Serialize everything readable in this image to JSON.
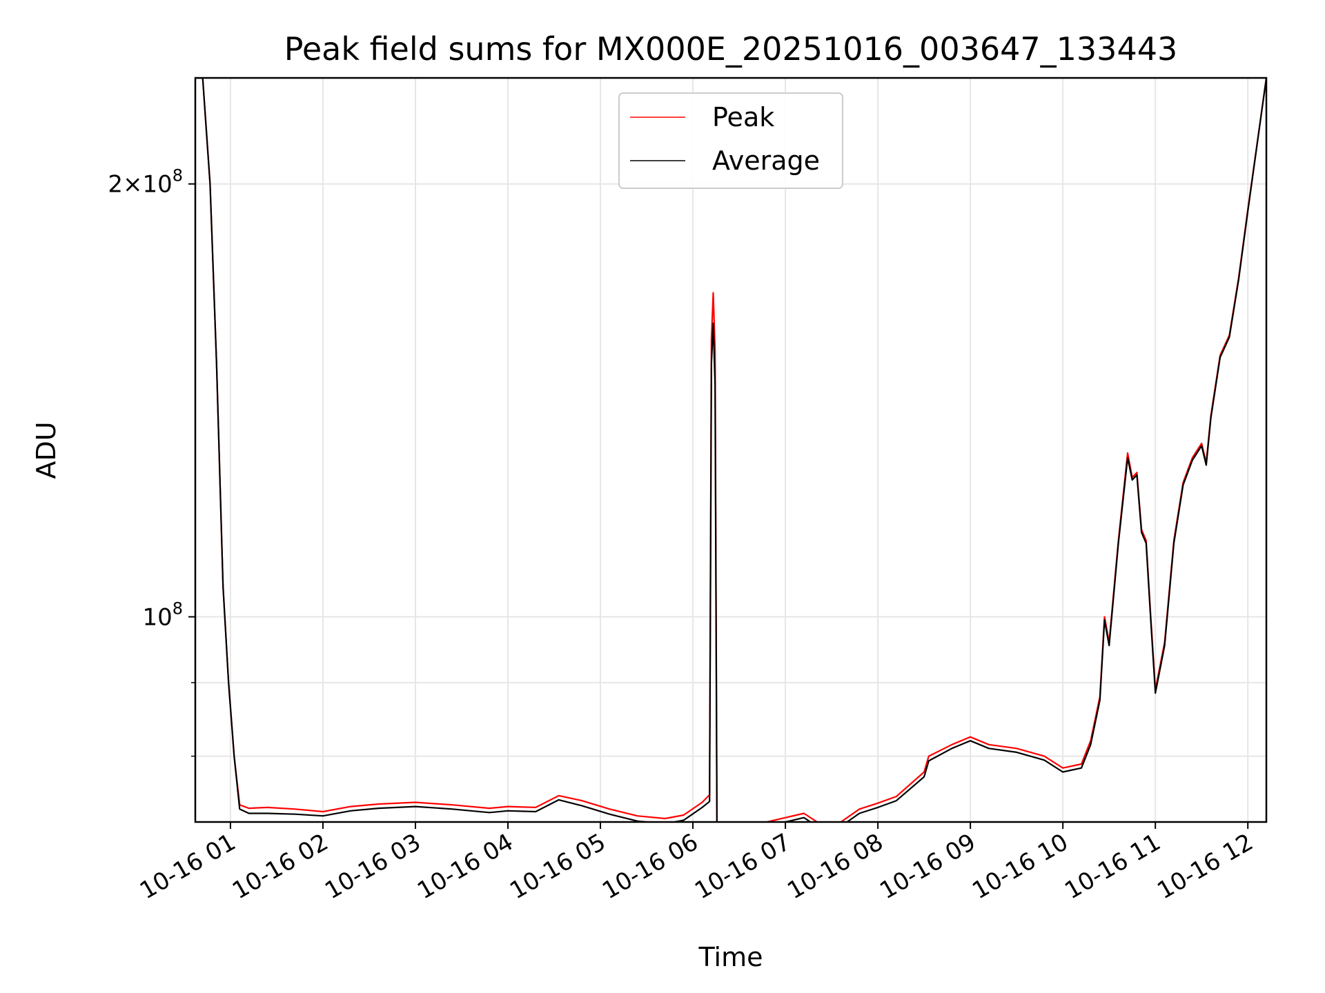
{
  "chart_data": {
    "type": "line",
    "title": "Peak field sums for MX000E_20251016_003647_133443",
    "xlabel": "Time",
    "ylabel": "ADU",
    "yscale": "log",
    "xlim_hours": [
      0.62,
      12.2
    ],
    "ylim": [
      72000000,
      237000000
    ],
    "grid": true,
    "legend_position": "top-center",
    "x_tick_labels": [
      "10-16 01",
      "10-16 02",
      "10-16 03",
      "10-16 04",
      "10-16 05",
      "10-16 06",
      "10-16 07",
      "10-16 08",
      "10-16 09",
      "10-16 10",
      "10-16 11",
      "10-16 12"
    ],
    "x_tick_hours": [
      1,
      2,
      3,
      4,
      5,
      6,
      7,
      8,
      9,
      10,
      11,
      12
    ],
    "y_major_ticks": [
      {
        "value": 100000000,
        "label": "10^8"
      },
      {
        "value": 200000000,
        "label": "2×10^8"
      }
    ],
    "y_minor_ticks": [
      80000000,
      90000000
    ],
    "series": [
      {
        "name": "Peak",
        "color": "#ff0000",
        "x_hours": [
          0.62,
          0.7,
          0.78,
          0.85,
          0.92,
          0.98,
          1.04,
          1.1,
          1.2,
          1.4,
          1.7,
          2.0,
          2.3,
          2.6,
          3.0,
          3.4,
          3.8,
          4.0,
          4.3,
          4.55,
          4.8,
          5.1,
          5.4,
          5.7,
          5.9,
          6.1,
          6.18,
          6.2,
          6.22,
          6.24,
          6.26,
          6.5,
          6.8,
          7.0,
          7.2,
          7.4,
          7.6,
          7.8,
          8.0,
          8.2,
          8.5,
          8.55,
          8.8,
          9.0,
          9.2,
          9.5,
          9.8,
          10.0,
          10.2,
          10.3,
          10.4,
          10.45,
          10.5,
          10.6,
          10.7,
          10.75,
          10.8,
          10.85,
          10.9,
          10.95,
          11.0,
          11.1,
          11.2,
          11.3,
          11.4,
          11.5,
          11.55,
          11.6,
          11.7,
          11.8,
          11.9,
          12.0,
          12.2
        ],
        "values": [
          237000000,
          237000000,
          200000000,
          150000000,
          105000000,
          90000000,
          80000000,
          74000000,
          73600000,
          73700000,
          73500000,
          73200000,
          73800000,
          74100000,
          74300000,
          74000000,
          73600000,
          73800000,
          73700000,
          75100000,
          74500000,
          73500000,
          72700000,
          72400000,
          72800000,
          74300000,
          75200000,
          156000000,
          168000000,
          153000000,
          71800000,
          71900000,
          72000000,
          72500000,
          73000000,
          71600000,
          72000000,
          73500000,
          74200000,
          75000000,
          78000000,
          80000000,
          81500000,
          82500000,
          81500000,
          81000000,
          80000000,
          78500000,
          79000000,
          82000000,
          88000000,
          100000000,
          96000000,
          113000000,
          130000000,
          125000000,
          126000000,
          115000000,
          113000000,
          100000000,
          89000000,
          96000000,
          113000000,
          124000000,
          129000000,
          132000000,
          128000000,
          138000000,
          152000000,
          157000000,
          172000000,
          192000000,
          237000000
        ]
      },
      {
        "name": "Average",
        "color": "#000000",
        "x_hours": [
          0.62,
          0.7,
          0.78,
          0.85,
          0.92,
          0.98,
          1.04,
          1.1,
          1.2,
          1.4,
          1.7,
          2.0,
          2.3,
          2.6,
          3.0,
          3.4,
          3.8,
          4.0,
          4.3,
          4.55,
          4.8,
          5.1,
          5.4,
          5.7,
          5.9,
          6.1,
          6.18,
          6.2,
          6.22,
          6.24,
          6.26,
          6.5,
          6.8,
          7.0,
          7.2,
          7.4,
          7.6,
          7.8,
          8.0,
          8.2,
          8.5,
          8.55,
          8.8,
          9.0,
          9.2,
          9.5,
          9.8,
          10.0,
          10.2,
          10.3,
          10.4,
          10.45,
          10.5,
          10.6,
          10.7,
          10.75,
          10.8,
          10.85,
          10.9,
          10.95,
          11.0,
          11.1,
          11.2,
          11.3,
          11.4,
          11.5,
          11.55,
          11.6,
          11.7,
          11.8,
          11.9,
          12.0,
          12.2
        ],
        "values": [
          237000000,
          237000000,
          200000000,
          150000000,
          105000000,
          90000000,
          80000000,
          73500000,
          73000000,
          73000000,
          72900000,
          72700000,
          73300000,
          73600000,
          73800000,
          73500000,
          73100000,
          73300000,
          73200000,
          74600000,
          73900000,
          72900000,
          72100000,
          71800000,
          72200000,
          73700000,
          74400000,
          150000000,
          160000000,
          145000000,
          71300000,
          71400000,
          71500000,
          72000000,
          72500000,
          71100000,
          71500000,
          73000000,
          73700000,
          74500000,
          77400000,
          79400000,
          81000000,
          82000000,
          81000000,
          80500000,
          79500000,
          78000000,
          78500000,
          81500000,
          87500000,
          99500000,
          95500000,
          112500000,
          129000000,
          124500000,
          125500000,
          114500000,
          112500000,
          99500000,
          88500000,
          95500000,
          112500000,
          123500000,
          128500000,
          131500000,
          127500000,
          137500000,
          151500000,
          156500000,
          171500000,
          191500000,
          237000000
        ]
      }
    ],
    "legend": [
      "Peak",
      "Average"
    ]
  }
}
